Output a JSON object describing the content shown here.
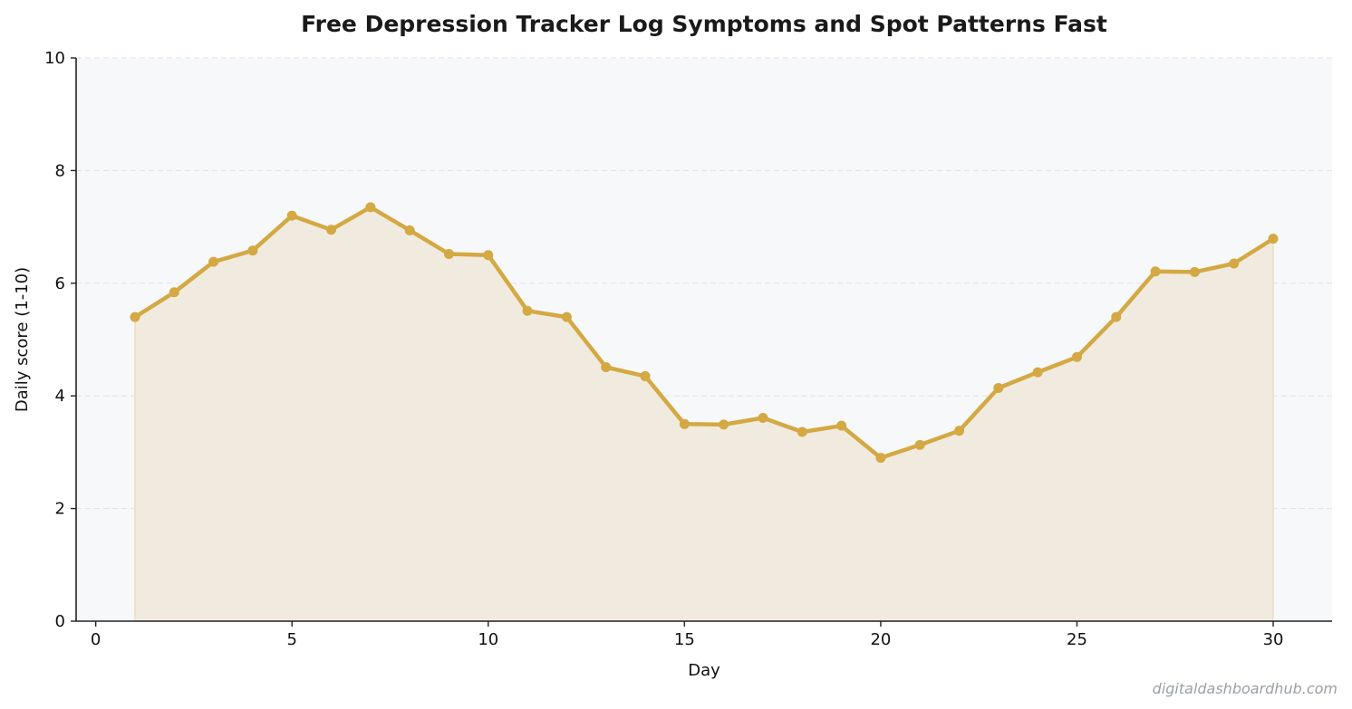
{
  "chart_data": {
    "type": "area",
    "title": "Free Depression Tracker  Log Symptoms and Spot Patterns Fast",
    "xlabel": "Day",
    "ylabel": "Daily score (1-10)",
    "xlim": [
      -0.5,
      31.5
    ],
    "ylim": [
      0,
      10
    ],
    "xticks": [
      0,
      5,
      10,
      15,
      20,
      25,
      30
    ],
    "yticks": [
      0,
      2,
      4,
      6,
      8,
      10
    ],
    "grid": "horizontal dashed",
    "legend": "none",
    "series": [
      {
        "x": [
          1,
          2,
          3,
          4,
          5,
          6,
          7,
          8,
          9,
          10,
          11,
          12,
          13,
          14,
          15,
          16,
          17,
          18,
          19,
          20,
          21,
          22,
          23,
          24,
          25,
          26,
          27,
          28,
          29,
          30
        ],
        "values": [
          5.4,
          5.84,
          6.38,
          6.58,
          7.2,
          6.95,
          7.35,
          6.94,
          6.52,
          6.5,
          5.51,
          5.4,
          4.51,
          4.35,
          3.5,
          3.49,
          3.61,
          3.36,
          3.47,
          2.9,
          3.13,
          3.38,
          4.14,
          4.42,
          4.69,
          5.4,
          6.21,
          6.2,
          6.35,
          6.79
        ]
      }
    ],
    "colors": {
      "line": "#d4a843",
      "fill": "#f1ebdf",
      "plot_background": "#f7f8fa",
      "grid": "#dfe2e6"
    }
  },
  "watermark": "digitaldashboardhub.com"
}
